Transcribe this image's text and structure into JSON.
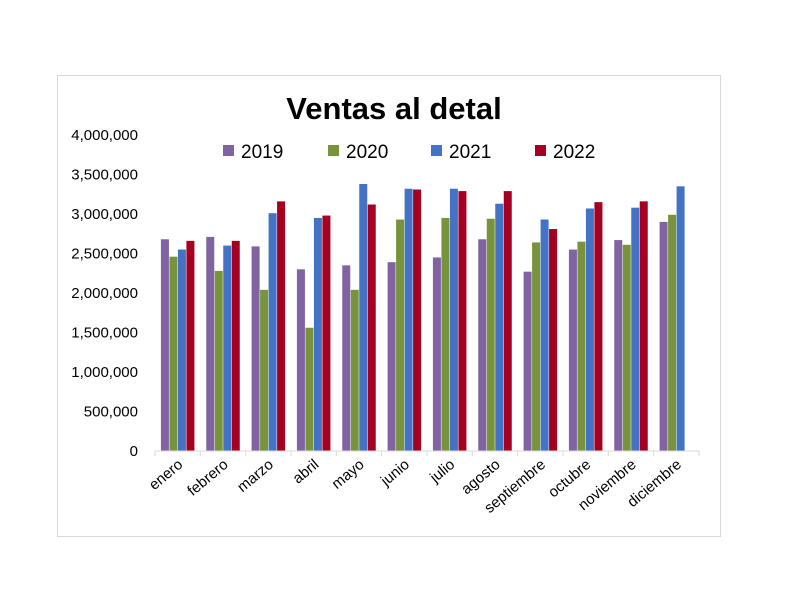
{
  "chart_data": {
    "type": "bar",
    "title": "Ventas al detal",
    "xlabel": "",
    "ylabel": "",
    "ylim": [
      0,
      4000000
    ],
    "yticks": [
      "0",
      "500,000",
      "1,000,000",
      "1,500,000",
      "2,000,000",
      "2,500,000",
      "3,000,000",
      "3,500,000",
      "4,000,000"
    ],
    "ytick_values": [
      0,
      500000,
      1000000,
      1500000,
      2000000,
      2500000,
      3000000,
      3500000,
      4000000
    ],
    "categories": [
      "enero",
      "febrero",
      "marzo",
      "abril",
      "mayo",
      "junio",
      "julio",
      "agosto",
      "septiembre",
      "octubre",
      "noviembre",
      "diciembre"
    ],
    "grid": false,
    "legend_position": "top",
    "series": [
      {
        "name": "2019",
        "color": "#8064a2",
        "values": [
          2680000,
          2710000,
          2590000,
          2300000,
          2350000,
          2390000,
          2450000,
          2680000,
          2270000,
          2550000,
          2670000,
          2900000
        ]
      },
      {
        "name": "2020",
        "color": "#77933c",
        "values": [
          2460000,
          2280000,
          2040000,
          1560000,
          2040000,
          2930000,
          2950000,
          2940000,
          2640000,
          2650000,
          2610000,
          2990000
        ]
      },
      {
        "name": "2021",
        "color": "#4472c4",
        "values": [
          2550000,
          2600000,
          3010000,
          2950000,
          3380000,
          3320000,
          3320000,
          3130000,
          2930000,
          3070000,
          3080000,
          3350000
        ]
      },
      {
        "name": "2022",
        "color": "#a50021",
        "values": [
          2660000,
          2660000,
          3160000,
          2980000,
          3120000,
          3310000,
          3290000,
          3290000,
          2810000,
          3150000,
          3160000,
          null
        ]
      }
    ]
  }
}
